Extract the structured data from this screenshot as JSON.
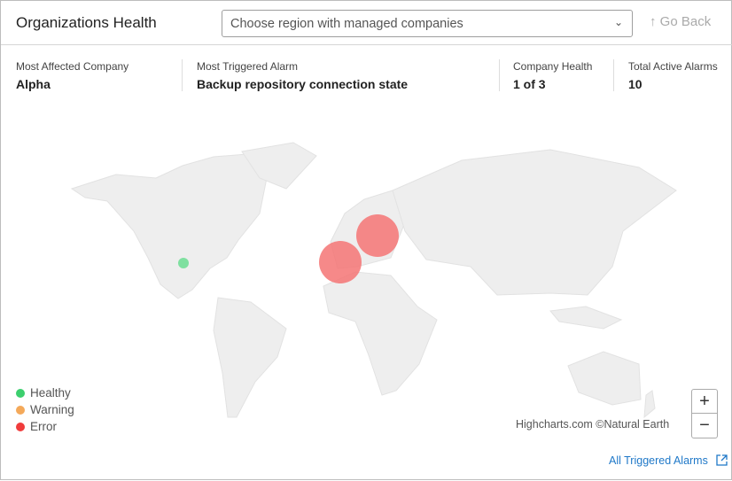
{
  "header": {
    "title": "Organizations Health",
    "region_placeholder": "Choose region with managed companies",
    "go_back": "Go Back"
  },
  "stats": [
    {
      "label": "Most Affected Company",
      "value": "Alpha"
    },
    {
      "label": "Most Triggered Alarm",
      "value": "Backup repository connection state"
    },
    {
      "label": "Company Health",
      "value": "1 of 3"
    },
    {
      "label": "Total Active Alarms",
      "value": "10"
    }
  ],
  "legend": [
    {
      "label": "Healthy",
      "color": "#3ccf6e"
    },
    {
      "label": "Warning",
      "color": "#f4a95a"
    },
    {
      "label": "Error",
      "color": "#f03c3c"
    }
  ],
  "map": {
    "credits": "Highcharts.com ©Natural Earth",
    "zoom_in": "+",
    "zoom_out": "−",
    "bubbles": [
      {
        "status": "Healthy",
        "color": "#7fe0a0"
      },
      {
        "status": "Error",
        "color": "#f47474"
      },
      {
        "status": "Error",
        "color": "#f47474"
      }
    ]
  },
  "footer": {
    "link": "All Triggered Alarms"
  }
}
